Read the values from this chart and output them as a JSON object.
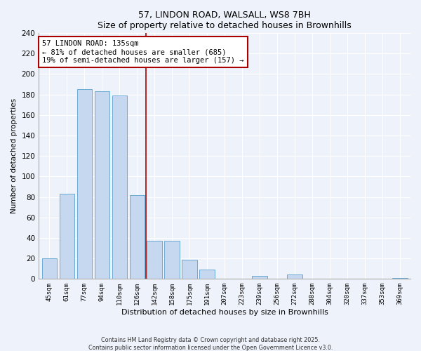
{
  "title": "57, LINDON ROAD, WALSALL, WS8 7BH",
  "subtitle": "Size of property relative to detached houses in Brownhills",
  "xlabel": "Distribution of detached houses by size in Brownhills",
  "ylabel": "Number of detached properties",
  "bar_labels": [
    "45sqm",
    "61sqm",
    "77sqm",
    "94sqm",
    "110sqm",
    "126sqm",
    "142sqm",
    "158sqm",
    "175sqm",
    "191sqm",
    "207sqm",
    "223sqm",
    "239sqm",
    "256sqm",
    "272sqm",
    "288sqm",
    "304sqm",
    "320sqm",
    "337sqm",
    "353sqm",
    "369sqm"
  ],
  "bar_values": [
    20,
    83,
    185,
    183,
    179,
    82,
    37,
    37,
    19,
    9,
    0,
    0,
    3,
    0,
    4,
    0,
    0,
    0,
    0,
    0,
    1
  ],
  "bar_color": "#c5d8f0",
  "bar_edge_color": "#6aaad4",
  "vline_x_index": 5.5,
  "vline_color": "#aa0000",
  "annotation_title": "57 LINDON ROAD: 135sqm",
  "annotation_line1": "← 81% of detached houses are smaller (685)",
  "annotation_line2": "19% of semi-detached houses are larger (157) →",
  "annotation_box_color": "#ffffff",
  "annotation_box_edge": "#aa0000",
  "ylim": [
    0,
    240
  ],
  "yticks": [
    0,
    20,
    40,
    60,
    80,
    100,
    120,
    140,
    160,
    180,
    200,
    220,
    240
  ],
  "footnote1": "Contains HM Land Registry data © Crown copyright and database right 2025.",
  "footnote2": "Contains public sector information licensed under the Open Government Licence v3.0.",
  "bg_color": "#eef2fa",
  "grid_color": "#ffffff"
}
